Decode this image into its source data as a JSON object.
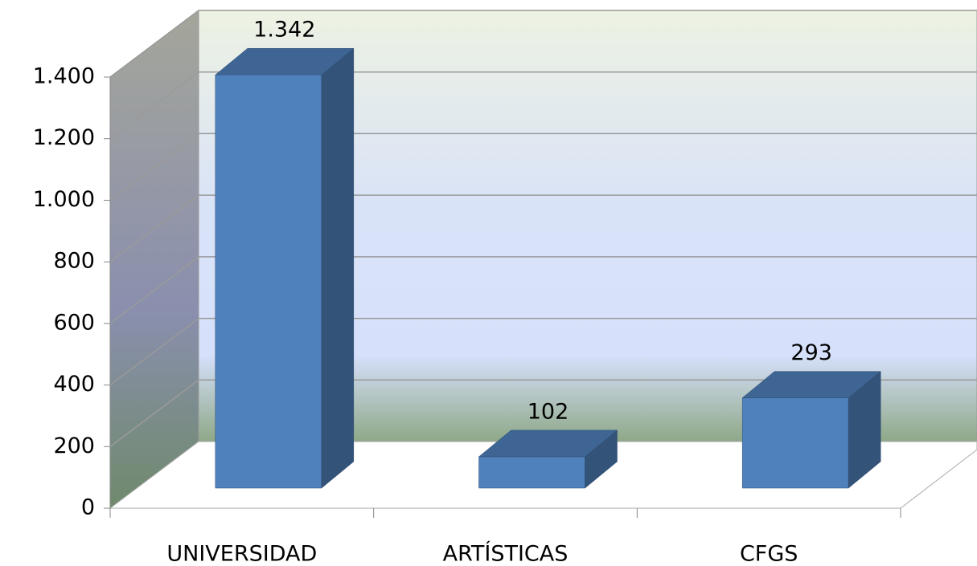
{
  "chart_data": {
    "type": "bar3d",
    "categories": [
      "UNIVERSIDAD",
      "ARTÍSTICAS",
      "CFGS"
    ],
    "values": [
      1342,
      102,
      293
    ],
    "value_labels": [
      "1.342",
      "102",
      "293"
    ],
    "color": "#4f81bd",
    "ylim": [
      0,
      1400
    ],
    "yticks": [
      0,
      200,
      400,
      600,
      800,
      {
        "value": 1000,
        "label": "1.000"
      },
      {
        "value": 1200,
        "label": "1.200"
      },
      {
        "value": 1400,
        "label": "1.400"
      }
    ],
    "grid": true
  }
}
